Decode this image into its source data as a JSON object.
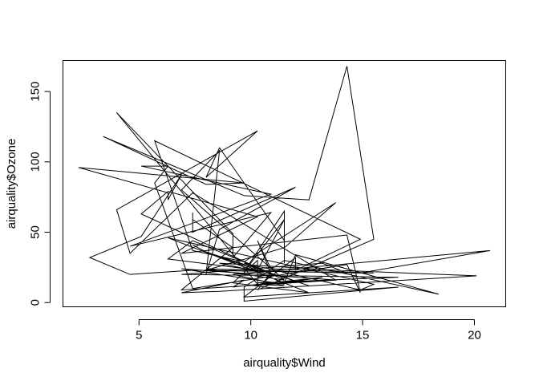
{
  "chart_data": {
    "type": "line",
    "title": "",
    "xlabel": "airquality$Wind",
    "ylabel": "airquality$Ozone",
    "xlim": [
      1.6,
      21.4
    ],
    "ylim": [
      -3.0,
      172.0
    ],
    "x_ticks": [
      5,
      10,
      15,
      20
    ],
    "y_ticks": [
      0,
      50,
      100,
      150
    ],
    "grid": false,
    "legend": "none",
    "line_color": "#000000",
    "series": [
      {
        "x": [
          7.4,
          8.0,
          12.6,
          11.5,
          8.6,
          13.8,
          20.1,
          8.6,
          6.9,
          9.7,
          9.2,
          10.9,
          13.2,
          11.5,
          12.0,
          18.4,
          11.5,
          9.7,
          9.7,
          16.6,
          9.7,
          12.0,
          12.0,
          14.9,
          5.7,
          7.4,
          9.7,
          13.8,
          11.5,
          8.0,
          14.9,
          20.7,
          9.2,
          11.5,
          10.3,
          4.0,
          9.2,
          9.2,
          10.9,
          4.6,
          10.9,
          5.1,
          6.3,
          5.7,
          7.4,
          14.3,
          14.9,
          14.3,
          6.9,
          10.3,
          6.3,
          5.1,
          11.5,
          6.9,
          8.6,
          8.0,
          8.6,
          12.0,
          7.4,
          7.4,
          7.4,
          9.2,
          6.9,
          13.8,
          7.4,
          4.6,
          4.0,
          10.3,
          8.0,
          8.6,
          11.5,
          11.5,
          11.5,
          9.7,
          11.5,
          10.3,
          6.3,
          7.4,
          10.9,
          10.3,
          15.5,
          14.3,
          12.6,
          9.7,
          3.4,
          8.0,
          9.7,
          2.3,
          6.3,
          6.3,
          6.9,
          5.1,
          2.8,
          4.6,
          7.4,
          15.5,
          10.9,
          10.3,
          10.9,
          9.7,
          14.9,
          15.5,
          6.3,
          10.9,
          11.5,
          6.9,
          13.8,
          10.3,
          10.3,
          8.0,
          12.6,
          9.2,
          10.3,
          10.3,
          16.6,
          6.9,
          13.2,
          14.3,
          8.0,
          11.5
        ],
        "y": [
          41,
          36,
          12,
          18,
          28,
          23,
          19,
          8,
          7,
          16,
          11,
          14,
          18,
          14,
          34,
          6,
          30,
          11,
          1,
          11,
          4,
          32,
          23,
          45,
          115,
          37,
          29,
          71,
          39,
          23,
          21,
          37,
          20,
          12,
          13,
          135,
          49,
          32,
          64,
          40,
          77,
          97,
          97,
          85,
          10,
          27,
          7,
          48,
          35,
          61,
          79,
          63,
          16,
          80,
          108,
          20,
          52,
          82,
          50,
          64,
          59,
          39,
          9,
          16,
          78,
          35,
          66,
          122,
          89,
          110,
          44,
          28,
          65,
          22,
          59,
          23,
          31,
          44,
          21,
          9,
          45,
          168,
          73,
          76,
          118,
          84,
          85,
          96,
          78,
          73,
          91,
          47,
          32,
          20,
          23,
          21,
          24,
          44,
          21,
          28,
          9,
          13,
          46,
          18,
          13,
          24,
          16,
          13,
          23,
          36,
          7,
          14,
          30,
          14,
          18,
          20,
          28,
          21,
          24,
          16
        ]
      }
    ]
  }
}
